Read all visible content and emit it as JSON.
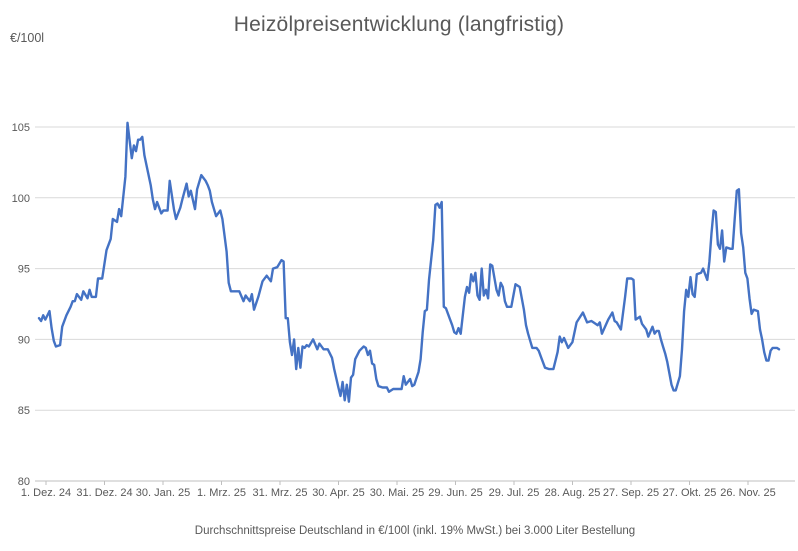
{
  "title": "Heizölpreisentwicklung (langfristig)",
  "y_axis_unit": "€/100l",
  "footer": "Durchschnittspreise Deutschland in €/100l (inkl. 19% MwSt.) bei 3.000 Liter Bestellung",
  "colors": {
    "line": "#4472C4",
    "grid": "#D9D9D9",
    "axis": "#BFBFBF",
    "text": "#595959",
    "background": "#FFFFFF"
  },
  "chart_data": {
    "type": "line",
    "title": "Heizölpreisentwicklung (langfristig)",
    "subtitle": "Durchschnittspreise Deutschland in €/100l (inkl. 19% MwSt.) bei 3.000 Liter Bestellung",
    "ylabel": "€/100l",
    "xlabel": "",
    "ylim": [
      80,
      106
    ],
    "yticks": [
      105,
      100,
      95,
      90,
      85,
      80
    ],
    "xticks": [
      "1. Dez. 24",
      "31. Dez. 24",
      "30. Jan. 25",
      "1. Mrz. 25",
      "31. Mrz. 25",
      "30. Apr. 25",
      "30. Mai. 25",
      "29. Jun. 25",
      "29. Jul. 25",
      "28. Aug. 25",
      "27. Sep. 25",
      "27. Okt. 25",
      "26. Nov. 25"
    ],
    "grid": "horizontal",
    "legend_position": "none",
    "series": [
      {
        "name": "Heizölpreis €/100l",
        "x_unit": "Tage ab 1. Dez. 24",
        "points": [
          [
            0,
            91.5
          ],
          [
            1,
            91.3
          ],
          [
            2,
            91.7
          ],
          [
            3,
            91.4
          ],
          [
            5,
            92.0
          ],
          [
            6,
            90.8
          ],
          [
            7,
            89.9
          ],
          [
            8,
            89.5
          ],
          [
            10,
            89.6
          ],
          [
            11,
            90.9
          ],
          [
            13,
            91.7
          ],
          [
            15,
            92.3
          ],
          [
            16,
            92.7
          ],
          [
            17,
            92.7
          ],
          [
            18,
            93.2
          ],
          [
            20,
            92.8
          ],
          [
            21,
            93.4
          ],
          [
            23,
            92.9
          ],
          [
            24,
            93.5
          ],
          [
            25,
            93.0
          ],
          [
            27,
            93.0
          ],
          [
            28,
            94.3
          ],
          [
            30,
            94.3
          ],
          [
            32,
            96.3
          ],
          [
            34,
            97.1
          ],
          [
            35,
            98.5
          ],
          [
            37,
            98.3
          ],
          [
            38,
            99.2
          ],
          [
            39,
            98.7
          ],
          [
            41,
            101.5
          ],
          [
            42,
            105.3
          ],
          [
            43,
            104.0
          ],
          [
            44,
            102.8
          ],
          [
            45,
            103.7
          ],
          [
            46,
            103.3
          ],
          [
            47,
            104.1
          ],
          [
            48,
            104.1
          ],
          [
            49,
            104.3
          ],
          [
            50,
            103.0
          ],
          [
            51,
            102.3
          ],
          [
            53,
            100.9
          ],
          [
            54,
            99.9
          ],
          [
            55,
            99.2
          ],
          [
            56,
            99.7
          ],
          [
            58,
            98.9
          ],
          [
            59,
            99.1
          ],
          [
            61,
            99.1
          ],
          [
            62,
            101.2
          ],
          [
            64,
            99.2
          ],
          [
            65,
            98.5
          ],
          [
            67,
            99.3
          ],
          [
            68,
            99.9
          ],
          [
            70,
            101.0
          ],
          [
            71,
            100.1
          ],
          [
            72,
            100.5
          ],
          [
            74,
            99.2
          ],
          [
            75,
            100.6
          ],
          [
            77,
            101.6
          ],
          [
            79,
            101.2
          ],
          [
            80,
            100.9
          ],
          [
            81,
            100.5
          ],
          [
            82,
            99.7
          ],
          [
            84,
            98.7
          ],
          [
            86,
            99.1
          ],
          [
            87,
            98.5
          ],
          [
            89,
            96.2
          ],
          [
            90,
            94.0
          ],
          [
            91,
            93.4
          ],
          [
            93,
            93.4
          ],
          [
            95,
            93.4
          ],
          [
            97,
            92.7
          ],
          [
            98,
            93.1
          ],
          [
            100,
            92.7
          ],
          [
            101,
            93.2
          ],
          [
            102,
            92.1
          ],
          [
            104,
            93.0
          ],
          [
            106,
            94.1
          ],
          [
            108,
            94.5
          ],
          [
            110,
            94.1
          ],
          [
            111,
            95.0
          ],
          [
            113,
            95.1
          ],
          [
            115,
            95.6
          ],
          [
            116,
            95.5
          ],
          [
            117,
            91.5
          ],
          [
            118,
            91.5
          ],
          [
            119,
            89.8
          ],
          [
            120,
            88.9
          ],
          [
            121,
            90.0
          ],
          [
            122,
            87.9
          ],
          [
            123,
            89.4
          ],
          [
            124,
            88.0
          ],
          [
            125,
            89.5
          ],
          [
            126,
            89.4
          ],
          [
            127,
            89.6
          ],
          [
            128,
            89.5
          ],
          [
            130,
            90.0
          ],
          [
            132,
            89.3
          ],
          [
            133,
            89.7
          ],
          [
            135,
            89.3
          ],
          [
            137,
            89.3
          ],
          [
            139,
            88.7
          ],
          [
            140,
            87.9
          ],
          [
            142,
            86.6
          ],
          [
            143,
            86.0
          ],
          [
            144,
            87.0
          ],
          [
            145,
            85.7
          ],
          [
            146,
            86.8
          ],
          [
            147,
            85.6
          ],
          [
            148,
            87.3
          ],
          [
            149,
            87.5
          ],
          [
            150,
            88.6
          ],
          [
            152,
            89.2
          ],
          [
            154,
            89.5
          ],
          [
            155,
            89.4
          ],
          [
            156,
            88.9
          ],
          [
            157,
            89.2
          ],
          [
            158,
            88.3
          ],
          [
            159,
            88.2
          ],
          [
            160,
            87.2
          ],
          [
            161,
            86.7
          ],
          [
            163,
            86.6
          ],
          [
            165,
            86.6
          ],
          [
            166,
            86.3
          ],
          [
            168,
            86.5
          ],
          [
            170,
            86.5
          ],
          [
            172,
            86.5
          ],
          [
            173,
            87.4
          ],
          [
            174,
            86.8
          ],
          [
            176,
            87.2
          ],
          [
            177,
            86.7
          ],
          [
            178,
            86.8
          ],
          [
            180,
            87.7
          ],
          [
            181,
            88.6
          ],
          [
            182,
            90.5
          ],
          [
            183,
            92.0
          ],
          [
            184,
            92.1
          ],
          [
            185,
            94.2
          ],
          [
            187,
            97.0
          ],
          [
            188,
            99.5
          ],
          [
            189,
            99.6
          ],
          [
            190,
            99.3
          ],
          [
            191,
            99.7
          ],
          [
            192,
            92.3
          ],
          [
            193,
            92.2
          ],
          [
            195,
            91.4
          ],
          [
            196,
            91.0
          ],
          [
            197,
            90.5
          ],
          [
            198,
            90.4
          ],
          [
            199,
            90.8
          ],
          [
            200,
            90.4
          ],
          [
            201,
            91.7
          ],
          [
            202,
            93.0
          ],
          [
            203,
            93.7
          ],
          [
            204,
            93.3
          ],
          [
            205,
            94.6
          ],
          [
            206,
            94.1
          ],
          [
            207,
            94.7
          ],
          [
            208,
            93.1
          ],
          [
            209,
            92.8
          ],
          [
            210,
            95.0
          ],
          [
            211,
            93.1
          ],
          [
            212,
            93.5
          ],
          [
            213,
            92.9
          ],
          [
            214,
            95.3
          ],
          [
            215,
            95.2
          ],
          [
            217,
            93.5
          ],
          [
            218,
            93.1
          ],
          [
            219,
            94.0
          ],
          [
            220,
            93.7
          ],
          [
            221,
            92.7
          ],
          [
            222,
            92.3
          ],
          [
            224,
            92.3
          ],
          [
            225,
            93.1
          ],
          [
            226,
            93.9
          ],
          [
            228,
            93.7
          ],
          [
            229,
            92.9
          ],
          [
            230,
            92.1
          ],
          [
            231,
            91.0
          ],
          [
            232,
            90.4
          ],
          [
            233,
            89.9
          ],
          [
            234,
            89.4
          ],
          [
            236,
            89.4
          ],
          [
            237,
            89.2
          ],
          [
            238,
            88.8
          ],
          [
            240,
            88.0
          ],
          [
            242,
            87.9
          ],
          [
            244,
            87.9
          ],
          [
            246,
            89.1
          ],
          [
            247,
            90.2
          ],
          [
            248,
            89.8
          ],
          [
            249,
            90.1
          ],
          [
            251,
            89.4
          ],
          [
            253,
            89.8
          ],
          [
            255,
            91.2
          ],
          [
            258,
            91.9
          ],
          [
            260,
            91.2
          ],
          [
            262,
            91.3
          ],
          [
            263,
            91.2
          ],
          [
            265,
            91.0
          ],
          [
            266,
            91.2
          ],
          [
            267,
            90.4
          ],
          [
            270,
            91.4
          ],
          [
            272,
            91.9
          ],
          [
            273,
            91.3
          ],
          [
            274,
            91.2
          ],
          [
            276,
            90.7
          ],
          [
            278,
            93.0
          ],
          [
            279,
            94.3
          ],
          [
            281,
            94.3
          ],
          [
            282,
            94.2
          ],
          [
            283,
            91.4
          ],
          [
            285,
            91.6
          ],
          [
            286,
            91.1
          ],
          [
            288,
            90.7
          ],
          [
            289,
            90.2
          ],
          [
            291,
            90.9
          ],
          [
            292,
            90.4
          ],
          [
            293,
            90.6
          ],
          [
            294,
            90.6
          ],
          [
            295,
            90.0
          ],
          [
            296,
            89.5
          ],
          [
            297,
            89.0
          ],
          [
            298,
            88.4
          ],
          [
            299,
            87.6
          ],
          [
            300,
            86.8
          ],
          [
            301,
            86.4
          ],
          [
            302,
            86.4
          ],
          [
            304,
            87.4
          ],
          [
            305,
            89.3
          ],
          [
            306,
            92.0
          ],
          [
            307,
            93.5
          ],
          [
            308,
            93.0
          ],
          [
            309,
            94.4
          ],
          [
            310,
            93.2
          ],
          [
            311,
            93.0
          ],
          [
            312,
            94.6
          ],
          [
            314,
            94.7
          ],
          [
            315,
            95.0
          ],
          [
            316,
            94.6
          ],
          [
            317,
            94.2
          ],
          [
            318,
            95.5
          ],
          [
            319,
            97.5
          ],
          [
            320,
            99.1
          ],
          [
            321,
            99.0
          ],
          [
            322,
            96.7
          ],
          [
            323,
            96.4
          ],
          [
            324,
            97.7
          ],
          [
            325,
            95.5
          ],
          [
            326,
            96.5
          ],
          [
            328,
            96.4
          ],
          [
            329,
            96.4
          ],
          [
            330,
            98.5
          ],
          [
            331,
            100.5
          ],
          [
            332,
            100.6
          ],
          [
            333,
            97.5
          ],
          [
            334,
            96.5
          ],
          [
            335,
            94.7
          ],
          [
            336,
            94.3
          ],
          [
            337,
            92.9
          ],
          [
            338,
            91.8
          ],
          [
            339,
            92.1
          ],
          [
            341,
            92.0
          ],
          [
            342,
            90.7
          ],
          [
            343,
            90.0
          ],
          [
            344,
            89.1
          ],
          [
            345,
            88.5
          ],
          [
            346,
            88.5
          ],
          [
            347,
            89.2
          ],
          [
            348,
            89.4
          ],
          [
            350,
            89.4
          ],
          [
            351,
            89.3
          ]
        ]
      }
    ]
  }
}
